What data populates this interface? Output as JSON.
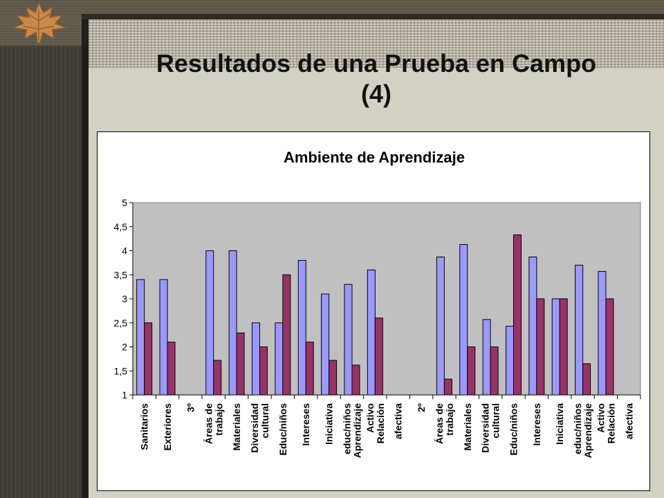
{
  "slide": {
    "title_line1": "Resultados de una Prueba en Campo",
    "title_line2": "(4)"
  },
  "colors": {
    "series1": "#9999ff",
    "series2": "#993366",
    "plot_background": "#c0c0c0",
    "slide_background": "#d3d0c4"
  },
  "chart_data": {
    "type": "bar",
    "title": "Ambiente de Aprendizaje",
    "xlabel": "",
    "ylabel": "",
    "ylim": [
      1,
      5
    ],
    "yticks": [
      "1",
      "1,5",
      "2",
      "2,5",
      "3",
      "3,5",
      "4",
      "4,5",
      "5"
    ],
    "grid": false,
    "legend": "none",
    "categories": [
      [
        "Sanitarios"
      ],
      [
        "Exteriores"
      ],
      [
        "3º"
      ],
      [
        "Áreas de",
        "trabajo"
      ],
      [
        "Materiales"
      ],
      [
        "Diversidad",
        "cultural"
      ],
      [
        "Educ/niños"
      ],
      [
        "Intereses"
      ],
      [
        "Iniciativa"
      ],
      [
        "educ/niños",
        "Aprendizaje"
      ],
      [
        "Activo",
        "Relación"
      ],
      [
        "afectiva"
      ],
      [
        "2º"
      ],
      [
        "Áreas de",
        "trabajo"
      ],
      [
        "Materiales"
      ],
      [
        "Diversidad",
        "cultural"
      ],
      [
        "Educ/niños"
      ],
      [
        "Intereses"
      ],
      [
        "Iniciativa"
      ],
      [
        "educ/niños",
        "Aprendizaje"
      ],
      [
        "Activo",
        "Relación"
      ],
      [
        "afectiva"
      ]
    ],
    "series": [
      {
        "values": [
          3.4,
          3.4,
          null,
          4.0,
          4.0,
          2.5,
          2.5,
          3.8,
          3.1,
          3.3,
          3.6,
          null,
          null,
          3.87,
          4.13,
          2.57,
          2.43,
          3.87,
          3.0,
          3.7,
          3.57,
          null
        ]
      },
      {
        "values": [
          2.5,
          2.1,
          null,
          1.72,
          2.29,
          2.0,
          3.5,
          2.1,
          1.72,
          1.62,
          2.6,
          null,
          null,
          1.33,
          2.0,
          2.0,
          4.33,
          3.0,
          3.0,
          1.65,
          3.0,
          null
        ]
      }
    ]
  }
}
